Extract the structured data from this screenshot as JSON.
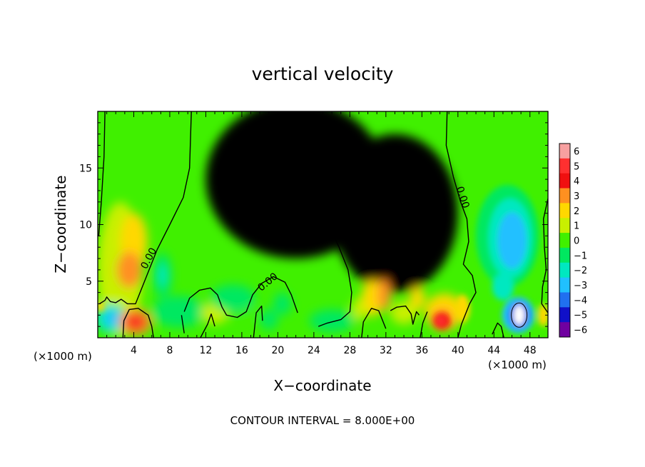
{
  "chart_data": {
    "type": "heatmap",
    "title": "vertical velocity",
    "xlabel": "X−coordinate",
    "ylabel": "Z−coordinate",
    "x_unit_note_left": "(×1000 m)",
    "x_unit_note_right": "(×1000 m)",
    "footer": "CONTOUR INTERVAL = 8.000E+00",
    "xlim": [
      0,
      50
    ],
    "ylim": [
      0,
      20
    ],
    "x_ticks": [
      "4",
      "8",
      "12",
      "16",
      "20",
      "24",
      "28",
      "32",
      "36",
      "40",
      "44",
      "48"
    ],
    "y_ticks": [
      "5",
      "10",
      "15"
    ],
    "contour_labels": [
      {
        "text": "0.00",
        "x": 5.7,
        "y": 7.0
      },
      {
        "text": "0.00",
        "x": 18.9,
        "y": 4.9
      },
      {
        "text": "0.00",
        "x": 24.9,
        "y": 11.3
      },
      {
        "text": "0.00",
        "x": 40.5,
        "y": 12.4
      }
    ],
    "colorbar": {
      "labels": [
        "6",
        "5",
        "4",
        "3",
        "2",
        "1",
        "0",
        "−1",
        "−2",
        "−3",
        "−4",
        "−5",
        "−6"
      ],
      "colors": [
        "#f7a0a0",
        "#ff3030",
        "#f01010",
        "#ff9020",
        "#ffd800",
        "#c8f000",
        "#40f000",
        "#00e860",
        "#00e8c0",
        "#20c0ff",
        "#2070f0",
        "#1010c8",
        "#7000a0"
      ]
    }
  }
}
